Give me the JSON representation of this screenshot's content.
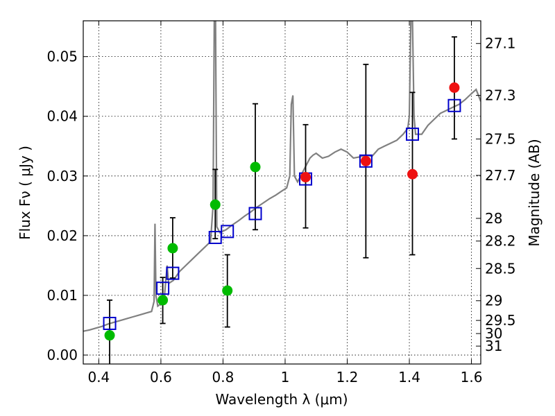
{
  "chart_data": {
    "type": "scatter",
    "xlabel": "Wavelength  λ (μm)",
    "ylabel": "Flux  Fν  ( μJy )",
    "ylabel_right": "Magnitude (AB)",
    "xlim": [
      0.35,
      1.63
    ],
    "ylim": [
      -0.0015,
      0.056
    ],
    "grid": true,
    "x_ticks": [
      0.4,
      0.6,
      0.8,
      1.0,
      1.2,
      1.4,
      1.6
    ],
    "x_tick_labels": [
      "0.4",
      "0.6",
      "0.8",
      "1",
      "1.2",
      "1.4",
      "1.6"
    ],
    "y_ticks": [
      0.0,
      0.01,
      0.02,
      0.03,
      0.04,
      0.05
    ],
    "y_tick_labels": [
      "0.00",
      "0.01",
      "0.02",
      "0.03",
      "0.04",
      "0.05"
    ],
    "mag_ticks": [
      {
        "label": "27.1",
        "flux": 0.0522
      },
      {
        "label": "27.3",
        "flux": 0.0435
      },
      {
        "label": "27.5",
        "flux": 0.0362
      },
      {
        "label": "27.7",
        "flux": 0.0301
      },
      {
        "label": "28",
        "flux": 0.0229
      },
      {
        "label": "28.2",
        "flux": 0.0191
      },
      {
        "label": "28.5",
        "flux": 0.0145
      },
      {
        "label": "29",
        "flux": 0.0091
      },
      {
        "label": "29.5",
        "flux": 0.0058
      },
      {
        "label": "30",
        "flux": 0.0036
      },
      {
        "label": "31",
        "flux": 0.0015
      }
    ],
    "series": [
      {
        "name": "model-spectrum",
        "style": "line",
        "color": "#808080",
        "points": [
          [
            0.35,
            0.004
          ],
          [
            0.37,
            0.0042
          ],
          [
            0.39,
            0.0045
          ],
          [
            0.41,
            0.0048
          ],
          [
            0.43,
            0.0052
          ],
          [
            0.45,
            0.0055
          ],
          [
            0.47,
            0.0058
          ],
          [
            0.49,
            0.0061
          ],
          [
            0.51,
            0.0064
          ],
          [
            0.53,
            0.0067
          ],
          [
            0.55,
            0.007
          ],
          [
            0.57,
            0.0073
          ],
          [
            0.578,
            0.009
          ],
          [
            0.581,
            0.022
          ],
          [
            0.584,
            0.01
          ],
          [
            0.59,
            0.0082
          ],
          [
            0.61,
            0.009
          ],
          [
            0.62,
            0.015
          ],
          [
            0.625,
            0.012
          ],
          [
            0.64,
            0.0125
          ],
          [
            0.66,
            0.014
          ],
          [
            0.68,
            0.015
          ],
          [
            0.7,
            0.016
          ],
          [
            0.72,
            0.017
          ],
          [
            0.74,
            0.018
          ],
          [
            0.76,
            0.019
          ],
          [
            0.768,
            0.025
          ],
          [
            0.772,
            0.0565
          ],
          [
            0.776,
            0.056
          ],
          [
            0.78,
            0.0215
          ],
          [
            0.79,
            0.0205
          ],
          [
            0.81,
            0.021
          ],
          [
            0.83,
            0.0218
          ],
          [
            0.85,
            0.0225
          ],
          [
            0.87,
            0.0233
          ],
          [
            0.89,
            0.024
          ],
          [
            0.91,
            0.0248
          ],
          [
            0.93,
            0.0255
          ],
          [
            0.95,
            0.0262
          ],
          [
            0.97,
            0.0268
          ],
          [
            0.99,
            0.0275
          ],
          [
            1.005,
            0.028
          ],
          [
            1.015,
            0.03
          ],
          [
            1.02,
            0.042
          ],
          [
            1.025,
            0.0435
          ],
          [
            1.03,
            0.03
          ],
          [
            1.04,
            0.029
          ],
          [
            1.05,
            0.03
          ],
          [
            1.06,
            0.031
          ],
          [
            1.07,
            0.032
          ],
          [
            1.08,
            0.033
          ],
          [
            1.09,
            0.0335
          ],
          [
            1.1,
            0.0338
          ],
          [
            1.12,
            0.033
          ],
          [
            1.14,
            0.0333
          ],
          [
            1.16,
            0.034
          ],
          [
            1.18,
            0.0345
          ],
          [
            1.2,
            0.034
          ],
          [
            1.22,
            0.033
          ],
          [
            1.24,
            0.0332
          ],
          [
            1.26,
            0.0335
          ],
          [
            1.28,
            0.0333
          ],
          [
            1.3,
            0.0345
          ],
          [
            1.32,
            0.035
          ],
          [
            1.34,
            0.0355
          ],
          [
            1.36,
            0.036
          ],
          [
            1.38,
            0.037
          ],
          [
            1.395,
            0.038
          ],
          [
            1.4,
            0.04
          ],
          [
            1.405,
            0.0565
          ],
          [
            1.41,
            0.0565
          ],
          [
            1.415,
            0.04
          ],
          [
            1.42,
            0.037
          ],
          [
            1.44,
            0.037
          ],
          [
            1.46,
            0.0385
          ],
          [
            1.48,
            0.0395
          ],
          [
            1.5,
            0.0405
          ],
          [
            1.52,
            0.041
          ],
          [
            1.54,
            0.0415
          ],
          [
            1.56,
            0.042
          ],
          [
            1.58,
            0.0428
          ],
          [
            1.6,
            0.0438
          ],
          [
            1.615,
            0.0445
          ],
          [
            1.63,
            0.0425
          ]
        ]
      },
      {
        "name": "model-photometry",
        "style": "open-square",
        "color": "#0000cc",
        "points": [
          [
            0.435,
            0.0053
          ],
          [
            0.606,
            0.0112
          ],
          [
            0.638,
            0.0137
          ],
          [
            0.775,
            0.0197
          ],
          [
            0.814,
            0.0207
          ],
          [
            0.904,
            0.0237
          ],
          [
            1.066,
            0.0295
          ],
          [
            1.26,
            0.0325
          ],
          [
            1.41,
            0.037
          ],
          [
            1.545,
            0.0418
          ]
        ]
      },
      {
        "name": "observed-flux-green",
        "style": "filled-circle",
        "color": "#00bb00",
        "points": [
          [
            0.435,
            0.0033
          ],
          [
            0.606,
            0.0092
          ],
          [
            0.638,
            0.0179
          ],
          [
            0.775,
            0.0252
          ],
          [
            0.814,
            0.0108
          ],
          [
            0.904,
            0.0315
          ]
        ]
      },
      {
        "name": "observed-flux-red",
        "style": "filled-circle",
        "color": "#ee1111",
        "points": [
          [
            1.066,
            0.0298
          ],
          [
            1.26,
            0.0325
          ],
          [
            1.41,
            0.0303
          ],
          [
            1.545,
            0.0448
          ]
        ]
      },
      {
        "name": "error-bars",
        "style": "errorbar",
        "color": "#000000",
        "bars": [
          [
            0.435,
            -0.0025,
            0.0092
          ],
          [
            0.606,
            0.0053,
            0.013
          ],
          [
            0.638,
            0.0129,
            0.023
          ],
          [
            0.775,
            0.0195,
            0.0311
          ],
          [
            0.814,
            0.0047,
            0.0168
          ],
          [
            0.904,
            0.021,
            0.0421
          ],
          [
            1.066,
            0.0213,
            0.0386
          ],
          [
            1.26,
            0.0163,
            0.0487
          ],
          [
            1.41,
            0.0168,
            0.044
          ],
          [
            1.545,
            0.0362,
            0.0533
          ]
        ]
      }
    ]
  }
}
